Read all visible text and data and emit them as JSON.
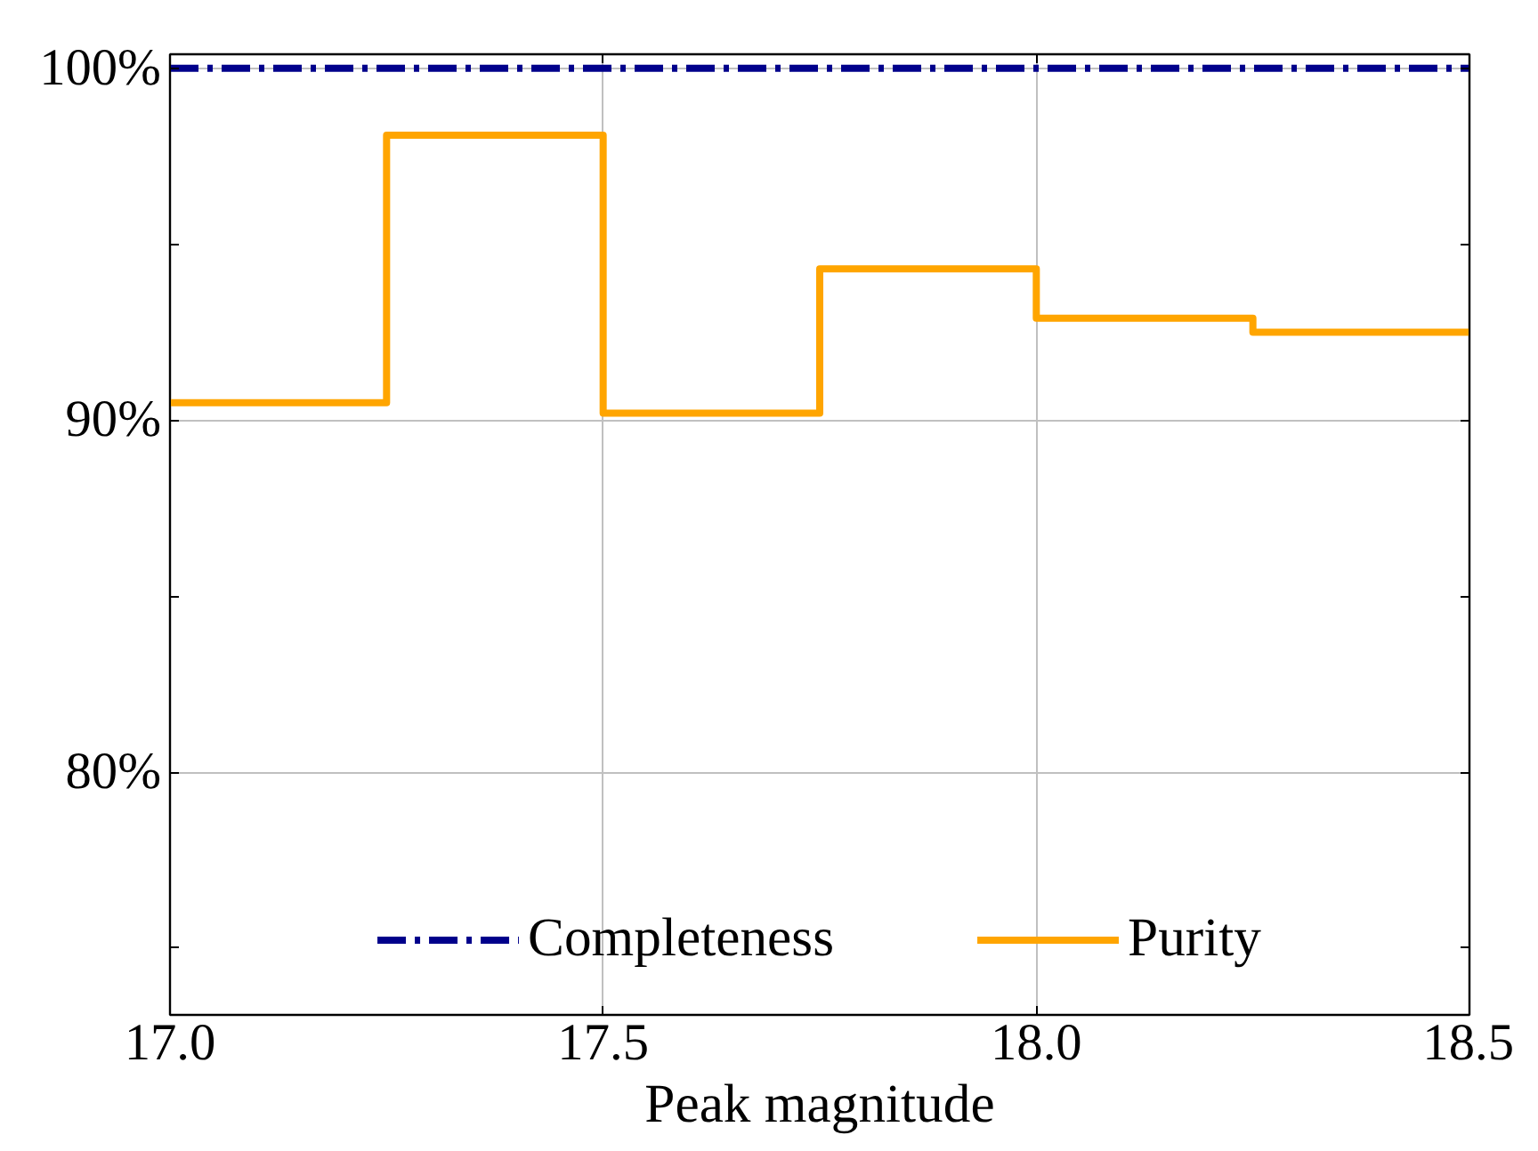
{
  "chart_data": {
    "type": "step",
    "xlabel": "Peak magnitude",
    "xlim": [
      17.0,
      18.5
    ],
    "xticks": [
      {
        "value": 17.0,
        "label": "17.0"
      },
      17.5,
      {
        "value": 18.0,
        "label": "18.0"
      },
      18.5
    ],
    "ylim": [
      73.1,
      100.4
    ],
    "yticks": [
      {
        "value": 75,
        "label": null
      },
      {
        "value": 80,
        "label": "80%"
      },
      {
        "value": 85,
        "label": null
      },
      {
        "value": 90,
        "label": "90%"
      },
      {
        "value": 95,
        "label": null
      },
      {
        "value": 100,
        "label": "100%"
      }
    ],
    "grid": true,
    "legend": "bottom",
    "series": [
      {
        "name": "Completeness",
        "type": "line",
        "color": "#00008b",
        "line_style": "dashdot",
        "x": [
          17.0,
          18.5
        ],
        "values": [
          100,
          100
        ]
      },
      {
        "name": "Purity",
        "color": "#ffa500",
        "line_style": "solid",
        "x": [
          17.0,
          17.25,
          17.5,
          17.75,
          18.0,
          18.25,
          18.5
        ],
        "values": [
          90.5,
          98.1,
          90.2,
          94.3,
          92.9,
          92.5,
          92.5
        ]
      }
    ]
  }
}
